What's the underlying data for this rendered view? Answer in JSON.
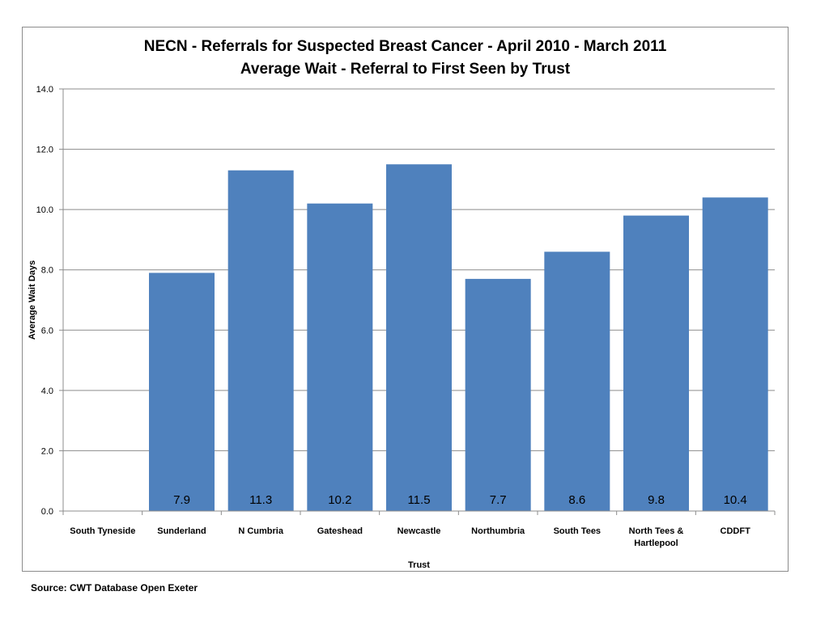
{
  "chart_data": {
    "type": "bar",
    "title": "NECN - Referrals for Suspected Breast Cancer - April 2010 - March 2011",
    "subtitle": "Average Wait - Referral to First Seen by Trust",
    "xlabel": "Trust",
    "ylabel": "Average Wait Days",
    "ylim": [
      0,
      14
    ],
    "yticks": [
      "0.0",
      "2.0",
      "4.0",
      "6.0",
      "8.0",
      "10.0",
      "12.0",
      "14.0"
    ],
    "grid": true,
    "bar_color": "#4f81bd",
    "categories": [
      "South Tyneside",
      "Sunderland",
      "N Cumbria",
      "Gateshead",
      "Newcastle",
      "Northumbria",
      "South Tees",
      "North Tees & Hartlepool",
      "CDDFT"
    ],
    "category_lines": [
      [
        "South Tyneside"
      ],
      [
        "Sunderland"
      ],
      [
        "N Cumbria"
      ],
      [
        "Gateshead"
      ],
      [
        "Newcastle"
      ],
      [
        "Northumbria"
      ],
      [
        "South Tees"
      ],
      [
        "North Tees &",
        "Hartlepool"
      ],
      [
        "CDDFT"
      ]
    ],
    "values": [
      null,
      7.9,
      11.3,
      10.2,
      11.5,
      7.7,
      8.6,
      9.8,
      10.4
    ],
    "data_labels": [
      "",
      "7.9",
      "11.3",
      "10.2",
      "11.5",
      "7.7",
      "8.6",
      "9.8",
      "10.4"
    ]
  },
  "source": "Source: CWT Database Open Exeter"
}
